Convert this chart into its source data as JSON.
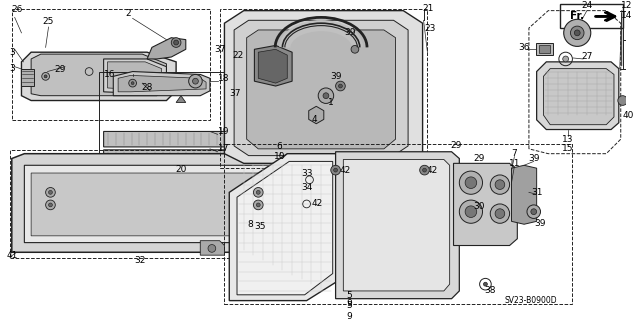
{
  "background_color": "#ffffff",
  "diagram_code": "SV23-B0900D",
  "line_color": "#222222",
  "text_color": "#000000",
  "font_size": 6.5
}
